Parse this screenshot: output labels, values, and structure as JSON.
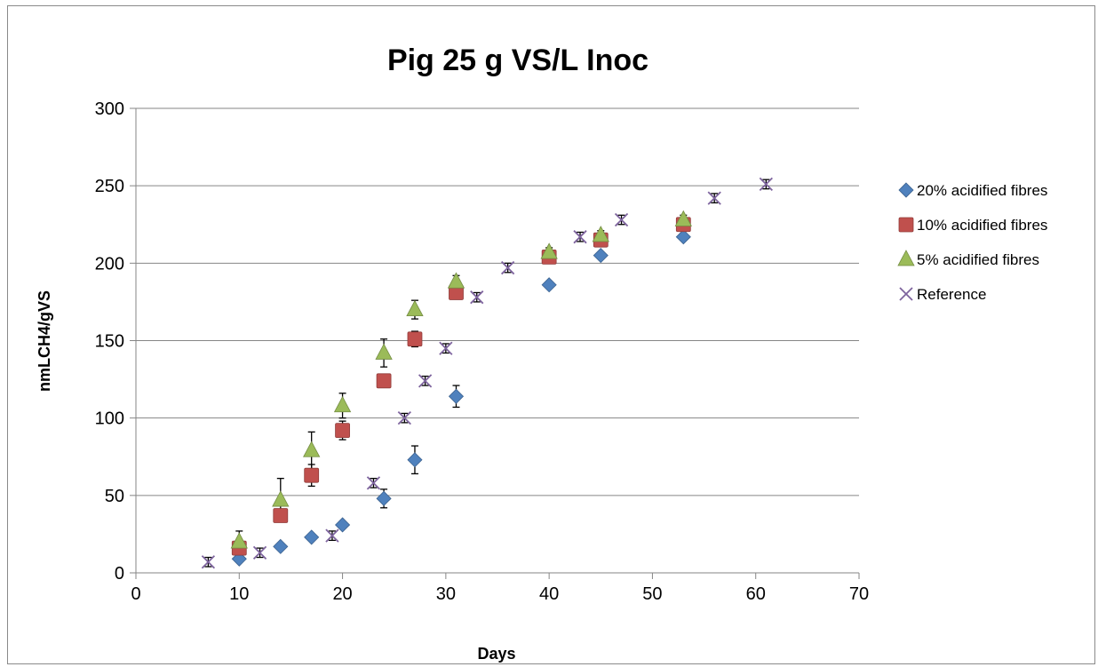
{
  "chart_data": {
    "type": "scatter",
    "title": "Pig 25 g VS/L Inoc",
    "xlabel": "Days",
    "ylabel": "nmLCH4/gVS",
    "xlim": [
      0,
      70
    ],
    "ylim": [
      0,
      300
    ],
    "xticks": [
      0,
      10,
      20,
      30,
      40,
      50,
      60,
      70
    ],
    "yticks": [
      0,
      50,
      100,
      150,
      200,
      250,
      300
    ],
    "grid": "horizontal",
    "legend_position": "right",
    "series": [
      {
        "name": "20% acidified fibres",
        "marker": "diamond",
        "color": "#4F81BD",
        "points": [
          {
            "x": 10,
            "y": 9,
            "err": 2
          },
          {
            "x": 14,
            "y": 17,
            "err": 2
          },
          {
            "x": 17,
            "y": 23,
            "err": 2
          },
          {
            "x": 20,
            "y": 31,
            "err": 2
          },
          {
            "x": 24,
            "y": 48,
            "err": 6
          },
          {
            "x": 27,
            "y": 73,
            "err": 9
          },
          {
            "x": 31,
            "y": 114,
            "err": 7
          },
          {
            "x": 40,
            "y": 186,
            "err": 2
          },
          {
            "x": 45,
            "y": 205,
            "err": 2
          },
          {
            "x": 53,
            "y": 217,
            "err": 2
          }
        ]
      },
      {
        "name": "10% acidified fibres",
        "marker": "square",
        "color": "#C0504D",
        "points": [
          {
            "x": 10,
            "y": 16,
            "err": 4
          },
          {
            "x": 14,
            "y": 37,
            "err": 4
          },
          {
            "x": 17,
            "y": 63,
            "err": 7
          },
          {
            "x": 20,
            "y": 92,
            "err": 6
          },
          {
            "x": 24,
            "y": 124,
            "err": 4
          },
          {
            "x": 27,
            "y": 151,
            "err": 5
          },
          {
            "x": 31,
            "y": 181,
            "err": 4
          },
          {
            "x": 40,
            "y": 204,
            "err": 4
          },
          {
            "x": 45,
            "y": 215,
            "err": 4
          },
          {
            "x": 53,
            "y": 225,
            "err": 4
          }
        ]
      },
      {
        "name": "5% acidified fibres",
        "marker": "triangle",
        "color": "#9BBB59",
        "points": [
          {
            "x": 10,
            "y": 20,
            "err": 7
          },
          {
            "x": 14,
            "y": 47,
            "err": 14
          },
          {
            "x": 17,
            "y": 79,
            "err": 12
          },
          {
            "x": 20,
            "y": 108,
            "err": 8
          },
          {
            "x": 24,
            "y": 142,
            "err": 9
          },
          {
            "x": 27,
            "y": 170,
            "err": 6
          },
          {
            "x": 31,
            "y": 188,
            "err": 4
          },
          {
            "x": 40,
            "y": 207,
            "err": 3
          },
          {
            "x": 45,
            "y": 218,
            "err": 3
          },
          {
            "x": 53,
            "y": 228,
            "err": 3
          }
        ]
      },
      {
        "name": "Reference",
        "marker": "x",
        "color": "#7E649E",
        "points": [
          {
            "x": 7,
            "y": 7,
            "err": 3
          },
          {
            "x": 12,
            "y": 13,
            "err": 3
          },
          {
            "x": 19,
            "y": 24,
            "err": 3
          },
          {
            "x": 23,
            "y": 58,
            "err": 3
          },
          {
            "x": 26,
            "y": 100,
            "err": 3
          },
          {
            "x": 28,
            "y": 124,
            "err": 3
          },
          {
            "x": 30,
            "y": 145,
            "err": 3
          },
          {
            "x": 33,
            "y": 178,
            "err": 3
          },
          {
            "x": 36,
            "y": 197,
            "err": 3
          },
          {
            "x": 43,
            "y": 217,
            "err": 3
          },
          {
            "x": 47,
            "y": 228,
            "err": 3
          },
          {
            "x": 56,
            "y": 242,
            "err": 3
          },
          {
            "x": 61,
            "y": 251,
            "err": 3
          }
        ]
      }
    ]
  }
}
